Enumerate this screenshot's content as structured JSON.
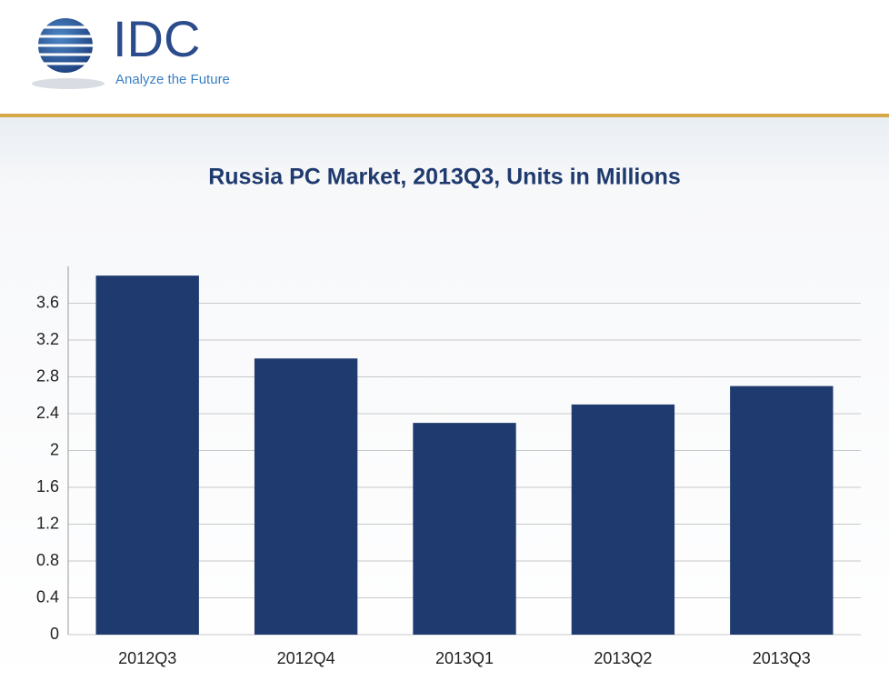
{
  "logo": {
    "name": "IDC",
    "tagline": "Analyze the Future"
  },
  "chart_data": {
    "type": "bar",
    "title": "Russia PC Market, 2013Q3, Units in Millions",
    "categories": [
      "2012Q3",
      "2012Q4",
      "2013Q1",
      "2013Q2",
      "2013Q3"
    ],
    "values": [
      3.9,
      3.0,
      2.3,
      2.5,
      2.7
    ],
    "color": "#1f3a6e",
    "ylim": [
      0,
      4.0
    ],
    "yticks": [
      0,
      0.4,
      0.8,
      1.2,
      1.6,
      2,
      2.4,
      2.8,
      3.2,
      3.6
    ],
    "grid": true
  }
}
